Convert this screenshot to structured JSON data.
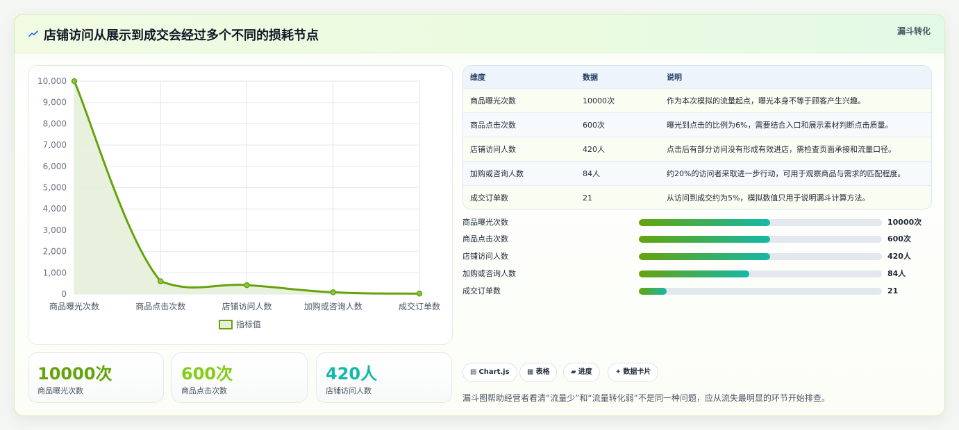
{
  "header": {
    "title": "店铺访问从展示到成交会经过多个不同的损耗节点",
    "tag": "漏斗转化"
  },
  "chart_data": {
    "type": "line",
    "categories": [
      "商品曝光次数",
      "商品点击次数",
      "店铺访问人数",
      "加购或咨询人数",
      "成交订单数"
    ],
    "series": [
      {
        "name": "指标值",
        "values": [
          10000,
          600,
          420,
          84,
          21
        ]
      }
    ],
    "yticks": [
      "0",
      "1,000",
      "2,000",
      "3,000",
      "4,000",
      "5,000",
      "6,000",
      "7,000",
      "8,000",
      "9,000",
      "10,000"
    ],
    "ylim": [
      0,
      10000
    ],
    "grid": true,
    "legend_position": "bottom",
    "line_color": "#65a30d",
    "fill_color": "#e6f0d9"
  },
  "stats": [
    {
      "value": "10000次",
      "label": "商品曝光次数",
      "color": "#65a30d"
    },
    {
      "value": "600次",
      "label": "商品点击次数",
      "color": "#84cc16"
    },
    {
      "value": "420人",
      "label": "店铺访问人数",
      "color": "#14b8a6"
    }
  ],
  "table": {
    "headers": [
      "维度",
      "数据",
      "说明"
    ],
    "rows": [
      [
        "商品曝光次数",
        "10000次",
        "作为本次模拟的流量起点，曝光本身不等于顾客产生兴趣。"
      ],
      [
        "商品点击次数",
        "600次",
        "曝光到点击的比例为6%，需要结合入口和展示素材判断点击质量。"
      ],
      [
        "店铺访问人数",
        "420人",
        "点击后有部分访问没有形成有效进店，需检查页面承接和流量口径。"
      ],
      [
        "加购或咨询人数",
        "84人",
        "约20%的访问者采取进一步行动，可用于观察商品与需求的匹配程度。"
      ],
      [
        "成交订单数",
        "21",
        "从访问到成交约为5%，模拟数值只用于说明漏斗计算方法。"
      ]
    ]
  },
  "progress": [
    {
      "label": "商品曝光次数",
      "value": "10000次",
      "fill": 0.54
    },
    {
      "label": "商品点击次数",
      "value": "600次",
      "fill": 0.54
    },
    {
      "label": "店铺访问人数",
      "value": "420人",
      "fill": 0.54
    },
    {
      "label": "加购或咨询人数",
      "value": "84人",
      "fill": 0.455
    },
    {
      "label": "成交订单数",
      "value": "21",
      "fill": 0.115
    }
  ],
  "chips": [
    {
      "icon": "▤",
      "label": "Chart.js"
    },
    {
      "icon": "▦",
      "label": "表格"
    },
    {
      "icon": "▰",
      "label": "进度"
    },
    {
      "icon": "✦",
      "label": "数据卡片"
    }
  ],
  "note": "漏斗图帮助经营者看清“流量少”和“流量转化弱”不是同一种问题，应从流失最明显的环节开始排查。"
}
